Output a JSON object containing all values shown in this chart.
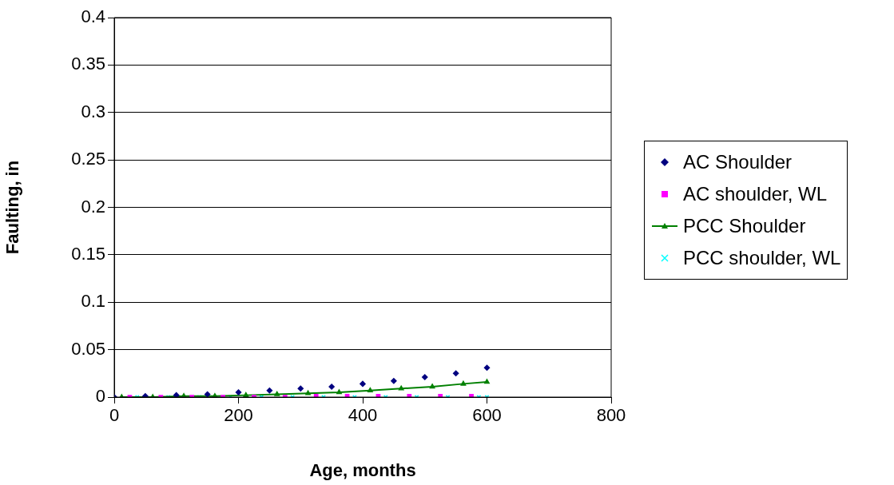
{
  "chart_data": {
    "type": "scatter",
    "xlabel": "Age, months",
    "ylabel": "Faulting, in",
    "series": [
      {
        "name": "AC Shoulder",
        "color": "#000080",
        "marker": "diamond",
        "x": [
          0,
          50,
          100,
          150,
          200,
          250,
          300,
          350,
          400,
          450,
          500,
          550,
          600
        ],
        "values": [
          0,
          0.001,
          0.002,
          0.003,
          0.005,
          0.007,
          0.009,
          0.011,
          0.014,
          0.017,
          0.021,
          0.025,
          0.031
        ]
      },
      {
        "name": "AC shoulder, WL",
        "color": "#ff00ff",
        "marker": "square",
        "x": [
          25,
          75,
          125,
          175,
          225,
          275,
          325,
          375,
          425,
          475,
          525,
          575
        ],
        "values": [
          0,
          0,
          0,
          0,
          0,
          0,
          0.001,
          0.001,
          0.001,
          0.001,
          0.001,
          0.001
        ]
      },
      {
        "name": "PCC Shoulder",
        "type": "line",
        "color": "#008000",
        "marker": "triangle",
        "x": [
          12,
          62,
          112,
          162,
          212,
          262,
          312,
          362,
          412,
          462,
          512,
          562,
          600
        ],
        "values": [
          0,
          0,
          0.001,
          0.001,
          0.002,
          0.003,
          0.004,
          0.005,
          0.007,
          0.009,
          0.011,
          0.014,
          0.016
        ]
      },
      {
        "name": "PCC shoulder, WL",
        "color": "#00ffff",
        "marker": "cross",
        "x": [
          37,
          87,
          137,
          187,
          237,
          287,
          337,
          387,
          437,
          487,
          537,
          587,
          600
        ],
        "values": [
          0,
          0,
          0,
          0,
          0,
          0,
          0,
          0,
          0,
          0,
          0,
          0,
          0
        ]
      }
    ],
    "xlim": [
      0,
      800
    ],
    "xticks": [
      0,
      200,
      400,
      600,
      800
    ],
    "ylim": [
      0,
      0.4
    ],
    "yticks": [
      0,
      0.05,
      0.1,
      0.15,
      0.2,
      0.25,
      0.3,
      0.35,
      0.4
    ],
    "grid": "y",
    "legend": "right"
  }
}
